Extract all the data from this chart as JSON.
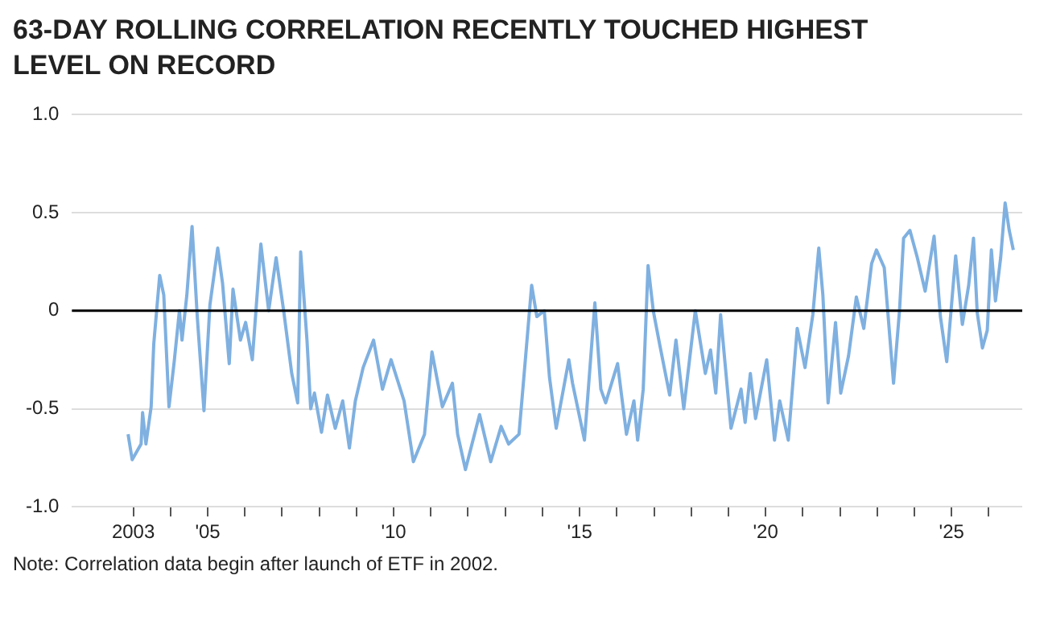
{
  "chart_data": {
    "type": "line",
    "title": "63-DAY ROLLING CORRELATION RECENTLY TOUCHED HIGHEST LEVEL ON RECORD",
    "annotations": [
      "Note: Correlation data begin after launch of ETF in 2002."
    ],
    "x": [
      2002.86,
      2002.97,
      2003.21,
      2003.25,
      2003.34,
      2003.48,
      2003.55,
      2003.71,
      2003.82,
      2003.96,
      2004.1,
      2004.24,
      2004.31,
      2004.44,
      2004.58,
      2004.72,
      2004.9,
      2005.06,
      2005.27,
      2005.4,
      2005.58,
      2005.68,
      2005.88,
      2006.02,
      2006.2,
      2006.43,
      2006.64,
      2006.84,
      2007.05,
      2007.26,
      2007.42,
      2007.5,
      2007.67,
      2007.77,
      2007.87,
      2008.06,
      2008.22,
      2008.43,
      2008.63,
      2008.81,
      2008.97,
      2009.18,
      2009.46,
      2009.7,
      2009.93,
      2010.28,
      2010.53,
      2010.83,
      2011.03,
      2011.31,
      2011.58,
      2011.72,
      2011.93,
      2012.31,
      2012.61,
      2012.89,
      2013.09,
      2013.37,
      2013.55,
      2013.71,
      2013.85,
      2014.05,
      2014.19,
      2014.37,
      2014.71,
      2014.81,
      2015.13,
      2015.41,
      2015.57,
      2015.7,
      2016.02,
      2016.26,
      2016.46,
      2016.56,
      2016.71,
      2016.84,
      2016.98,
      2017.15,
      2017.42,
      2017.59,
      2017.8,
      2018.11,
      2018.38,
      2018.52,
      2018.66,
      2018.79,
      2019.07,
      2019.34,
      2019.45,
      2019.59,
      2019.73,
      2020.03,
      2020.24,
      2020.38,
      2020.61,
      2020.85,
      2021.06,
      2021.27,
      2021.43,
      2021.54,
      2021.68,
      2021.88,
      2022.02,
      2022.23,
      2022.44,
      2022.64,
      2022.85,
      2022.98,
      2023.19,
      2023.44,
      2023.6,
      2023.71,
      2023.88,
      2024.08,
      2024.29,
      2024.53,
      2024.7,
      2024.87,
      2025.11,
      2025.29,
      2025.46,
      2025.59,
      2025.69,
      2025.83,
      2025.96,
      2026.07,
      2026.18,
      2026.32,
      2026.44,
      2026.55,
      2026.66
    ],
    "series": [
      {
        "color": "#7fb0e0",
        "values": [
          -0.63,
          -0.76,
          -0.68,
          -0.52,
          -0.68,
          -0.49,
          -0.17,
          0.18,
          0.08,
          -0.49,
          -0.26,
          0,
          -0.15,
          0.08,
          0.43,
          -0.03,
          -0.51,
          0.03,
          0.32,
          0.14,
          -0.27,
          0.11,
          -0.15,
          -0.06,
          -0.25,
          0.34,
          0,
          0.27,
          -0.01,
          -0.32,
          -0.47,
          0.3,
          -0.15,
          -0.5,
          -0.42,
          -0.62,
          -0.43,
          -0.6,
          -0.46,
          -0.7,
          -0.46,
          -0.29,
          -0.15,
          -0.4,
          -0.25,
          -0.46,
          -0.77,
          -0.63,
          -0.21,
          -0.49,
          -0.37,
          -0.63,
          -0.81,
          -0.53,
          -0.77,
          -0.59,
          -0.68,
          -0.63,
          -0.23,
          0.13,
          -0.03,
          0,
          -0.34,
          -0.6,
          -0.25,
          -0.37,
          -0.66,
          0.04,
          -0.4,
          -0.47,
          -0.27,
          -0.63,
          -0.46,
          -0.66,
          -0.4,
          0.23,
          0,
          -0.17,
          -0.43,
          -0.15,
          -0.5,
          0,
          -0.32,
          -0.2,
          -0.42,
          -0.02,
          -0.6,
          -0.4,
          -0.57,
          -0.32,
          -0.55,
          -0.25,
          -0.66,
          -0.46,
          -0.66,
          -0.09,
          -0.29,
          -0.02,
          0.32,
          0.08,
          -0.47,
          -0.06,
          -0.42,
          -0.23,
          0.07,
          -0.09,
          0.24,
          0.31,
          0.22,
          -0.37,
          0,
          0.37,
          0.41,
          0.27,
          0.1,
          0.38,
          -0.03,
          -0.26,
          0.28,
          -0.07,
          0.13,
          0.37,
          -0.01,
          -0.19,
          -0.1,
          0.31,
          0.05,
          0.27,
          0.55,
          0.41,
          0.31
        ]
      }
    ],
    "xlim": [
      2001.35,
      2026.9
    ],
    "xticks": [
      {
        "value": 2003,
        "label": "2003"
      },
      {
        "value": 2004,
        "label": null
      },
      {
        "value": 2005,
        "label": "'05"
      },
      {
        "value": 2006,
        "label": null
      },
      {
        "value": 2007,
        "label": null
      },
      {
        "value": 2008,
        "label": null
      },
      {
        "value": 2009,
        "label": null
      },
      {
        "value": 2010,
        "label": "'10"
      },
      {
        "value": 2011,
        "label": null
      },
      {
        "value": 2012,
        "label": null
      },
      {
        "value": 2013,
        "label": null
      },
      {
        "value": 2014,
        "label": null
      },
      {
        "value": 2015,
        "label": "'15"
      },
      {
        "value": 2016,
        "label": null
      },
      {
        "value": 2017,
        "label": null
      },
      {
        "value": 2018,
        "label": null
      },
      {
        "value": 2019,
        "label": null
      },
      {
        "value": 2020,
        "label": "'20"
      },
      {
        "value": 2021,
        "label": null
      },
      {
        "value": 2022,
        "label": null
      },
      {
        "value": 2023,
        "label": null
      },
      {
        "value": 2024,
        "label": null
      },
      {
        "value": 2025,
        "label": "'25"
      },
      {
        "value": 2026,
        "label": null
      }
    ],
    "ylim": [
      -1,
      1
    ],
    "yticks": [
      {
        "value": -1,
        "label": "-1.0"
      },
      {
        "value": -0.5,
        "label": "-0.5"
      },
      0,
      {
        "value": 0.5,
        "label": "0.5"
      },
      {
        "value": 1,
        "label": "1.0"
      }
    ],
    "ref_lines": [
      {
        "axis": "y",
        "value": 0,
        "color": "#000000"
      }
    ],
    "grid": "y",
    "legend": false,
    "marker": "none",
    "line_style": "solid"
  }
}
